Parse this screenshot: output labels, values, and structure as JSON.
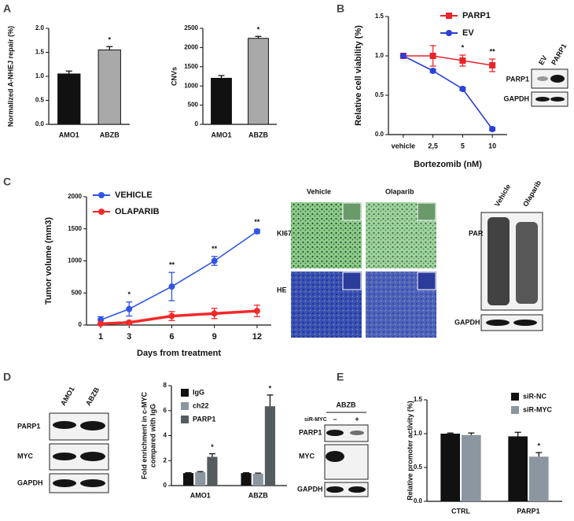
{
  "panel_letters": [
    "A",
    "B",
    "C",
    "D",
    "E"
  ],
  "blot_b": {
    "lanes": [
      "EV",
      "PARP1"
    ],
    "rows": [
      "PARP1",
      "GAPDH"
    ]
  },
  "histology_c": {
    "columns": [
      "Vehicle",
      "Olaparib"
    ],
    "rows": [
      "KI67",
      "HE"
    ]
  },
  "blot_c": {
    "lanes": [
      "Vehicle",
      "Olaparib"
    ],
    "rows": [
      "PAR",
      "GAPDH"
    ]
  },
  "blot_d": {
    "lanes": [
      "AMO1",
      "ABZB"
    ],
    "rows": [
      "PARP1",
      "MYC",
      "GAPDH"
    ]
  },
  "blot_e": {
    "title": "ABZB",
    "treatment": "siR-MYC",
    "lanes": [
      "–",
      "+"
    ],
    "rows": [
      "PARP1",
      "MYC",
      "GAPDH"
    ]
  },
  "chart_data": [
    {
      "type": "bar",
      "ylabel": "Normalized A-NHEJ repair (%)",
      "categories": [
        "AMO1",
        "ABZB"
      ],
      "values": [
        1.05,
        1.55
      ],
      "errors": [
        0.06,
        0.07
      ],
      "colors": [
        "#111111",
        "#a9a9a9"
      ],
      "annotations": [
        null,
        "*"
      ],
      "ylim": [
        0,
        2
      ],
      "yticks": [
        {
          "value": 0,
          "label": "0.0"
        },
        0.5,
        {
          "value": 1,
          "label": "1.0"
        },
        1.5,
        {
          "value": 2,
          "label": "2.0"
        }
      ]
    },
    {
      "type": "bar",
      "ylabel": "CNVs",
      "categories": [
        "AMO1",
        "ABZB"
      ],
      "values": [
        1200,
        2240
      ],
      "errors": [
        70,
        50
      ],
      "colors": [
        "#111111",
        "#a9a9a9"
      ],
      "annotations": [
        null,
        "*"
      ],
      "ylim": [
        0,
        2500
      ],
      "yticks": [
        0,
        500,
        1000,
        1500,
        2000,
        2500
      ]
    },
    {
      "type": "line",
      "ylabel": "Relative cell viability (%)",
      "xlabel": "Bortezomib (nM)",
      "categories": [
        "vehicle",
        "2,5",
        "5",
        "10"
      ],
      "series": [
        {
          "name": "PARP1",
          "color": "#e8262a",
          "marker": "square",
          "values": [
            1,
            1,
            0.94,
            0.88
          ],
          "errors": [
            0,
            0.13,
            0.07,
            0.08
          ]
        },
        {
          "name": "EV",
          "color": "#2a3fd6",
          "marker": "circle",
          "values": [
            1,
            0.81,
            0.58,
            0.07
          ],
          "errors": [
            0,
            0.02,
            0.02,
            0.02
          ]
        }
      ],
      "annotations": [
        null,
        null,
        "*",
        "**"
      ],
      "ylim": [
        0,
        1.5
      ],
      "yticks": [
        {
          "value": 0,
          "label": "0.0"
        },
        0.5,
        {
          "value": 1,
          "label": "1.0"
        },
        1.5
      ]
    },
    {
      "type": "line",
      "ylabel": "Tumor volume (mm3)",
      "xlabel": "Days from treatment",
      "x": [
        1,
        3,
        6,
        9,
        12
      ],
      "xlim": [
        0,
        13
      ],
      "xticks": [
        1,
        3,
        6,
        9,
        12
      ],
      "series": [
        {
          "name": "VEHICLE",
          "color": "#2f55e6",
          "marker": "circle",
          "values": [
            80,
            250,
            600,
            1000,
            1460
          ],
          "errors": [
            50,
            110,
            220,
            70,
            30
          ]
        },
        {
          "name": "OLAPARIB",
          "color": "#f32a2a",
          "marker": "circle",
          "values": [
            20,
            40,
            140,
            180,
            220
          ],
          "errors": [
            10,
            20,
            70,
            80,
            90
          ]
        }
      ],
      "annotations": [
        null,
        "*",
        "**",
        "**",
        "**"
      ],
      "ylim": [
        0,
        2000
      ],
      "yticks": [
        0,
        500,
        1000,
        1500,
        2000
      ]
    },
    {
      "type": "bar",
      "ylabel": [
        "Fold enrichment in c-MYC",
        "compared with IgG"
      ],
      "categories": [
        "AMO1",
        "ABZB"
      ],
      "series": [
        {
          "name": "IgG",
          "color": "#111111",
          "values": [
            1,
            1
          ],
          "errors": [
            0.03,
            0.03
          ]
        },
        {
          "name": "ch22",
          "color": "#8c96a0",
          "values": [
            1.07,
            0.95
          ],
          "errors": [
            0.05,
            0.05
          ]
        },
        {
          "name": "PARP1",
          "color": "#555c5e",
          "values": [
            2.3,
            6.35
          ],
          "errors": [
            0.25,
            0.9
          ],
          "annotations": [
            "*",
            "*"
          ]
        }
      ],
      "ylim": [
        0,
        8
      ],
      "yticks": [
        0,
        2,
        4,
        6,
        8
      ]
    },
    {
      "type": "bar",
      "ylabel": "Relative promoter activity (%)",
      "categories": [
        "CTRL",
        "PARP1"
      ],
      "series": [
        {
          "name": "siR-NC",
          "color": "#111111",
          "values": [
            1.0,
            0.96
          ],
          "errors": [
            0.01,
            0.06
          ]
        },
        {
          "name": "siR-MYC",
          "color": "#8c96a0",
          "values": [
            0.98,
            0.66
          ],
          "errors": [
            0.03,
            0.06
          ],
          "annotations": [
            null,
            "*"
          ]
        }
      ],
      "ylim": [
        0,
        1.5
      ],
      "yticks": [
        {
          "value": 0,
          "label": "0.0"
        },
        0.5,
        {
          "value": 1,
          "label": "1.0"
        },
        1.5
      ]
    }
  ]
}
